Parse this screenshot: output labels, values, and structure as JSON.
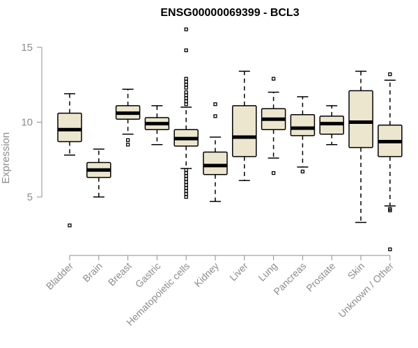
{
  "chart_data": {
    "type": "boxplot",
    "title": "ENSG00000069399 - BCL3",
    "xlabel": "",
    "ylabel": "Expression",
    "ylim": [
      1,
      16.5
    ],
    "yticks": [
      5,
      10,
      15
    ],
    "colors": {
      "box_fill": "#ede6cf",
      "stroke": "#000000",
      "axis": "#8c8c8c"
    },
    "categories": [
      "Bladder",
      "Brain",
      "Breast",
      "Gastric",
      "Hematopoietic cells",
      "Kidney",
      "Liver",
      "Lung",
      "Pancreas",
      "Prostate",
      "Skin",
      "Unknown / Other"
    ],
    "boxes": [
      {
        "name": "Bladder",
        "whisker_low": 7.8,
        "q1": 8.7,
        "median": 9.5,
        "q3": 10.6,
        "whisker_high": 11.9,
        "outliers": [
          3.1
        ]
      },
      {
        "name": "Brain",
        "whisker_low": 5.0,
        "q1": 6.3,
        "median": 6.8,
        "q3": 7.3,
        "whisker_high": 8.2,
        "outliers": []
      },
      {
        "name": "Breast",
        "whisker_low": 9.2,
        "q1": 10.2,
        "median": 10.6,
        "q3": 11.1,
        "whisker_high": 12.2,
        "outliers": [
          8.5,
          8.8
        ]
      },
      {
        "name": "Gastric",
        "whisker_low": 8.5,
        "q1": 9.5,
        "median": 9.9,
        "q3": 10.3,
        "whisker_high": 11.1,
        "outliers": []
      },
      {
        "name": "Hematopoietic cells",
        "whisker_low": 6.9,
        "q1": 8.4,
        "median": 8.9,
        "q3": 9.5,
        "whisker_high": 11.0,
        "outliers": [
          16.2,
          14.8,
          12.9,
          12.7,
          12.5,
          12.3,
          12.0,
          11.8,
          11.6,
          11.4,
          11.2,
          6.8,
          6.6,
          6.4,
          6.2,
          6.0,
          5.8,
          5.6,
          5.4,
          5.2,
          5.0
        ]
      },
      {
        "name": "Kidney",
        "whisker_low": 4.7,
        "q1": 6.5,
        "median": 7.1,
        "q3": 8.0,
        "whisker_high": 9.0,
        "outliers": [
          11.2,
          10.4
        ]
      },
      {
        "name": "Liver",
        "whisker_low": 6.1,
        "q1": 7.7,
        "median": 9.0,
        "q3": 11.1,
        "whisker_high": 13.4,
        "outliers": []
      },
      {
        "name": "Lung",
        "whisker_low": 7.6,
        "q1": 9.5,
        "median": 10.2,
        "q3": 10.9,
        "whisker_high": 12.0,
        "outliers": [
          12.9,
          6.6
        ]
      },
      {
        "name": "Pancreas",
        "whisker_low": 7.0,
        "q1": 9.1,
        "median": 9.6,
        "q3": 10.5,
        "whisker_high": 11.7,
        "outliers": [
          6.7
        ]
      },
      {
        "name": "Prostate",
        "whisker_low": 8.5,
        "q1": 9.2,
        "median": 9.9,
        "q3": 10.4,
        "whisker_high": 11.1,
        "outliers": []
      },
      {
        "name": "Skin",
        "whisker_low": 3.3,
        "q1": 8.3,
        "median": 10.0,
        "q3": 12.1,
        "whisker_high": 13.4,
        "outliers": []
      },
      {
        "name": "Unknown / Other",
        "whisker_low": 4.4,
        "q1": 7.7,
        "median": 8.7,
        "q3": 9.8,
        "whisker_high": 12.8,
        "outliers": [
          13.2,
          4.2,
          4.1,
          1.5
        ]
      }
    ]
  }
}
